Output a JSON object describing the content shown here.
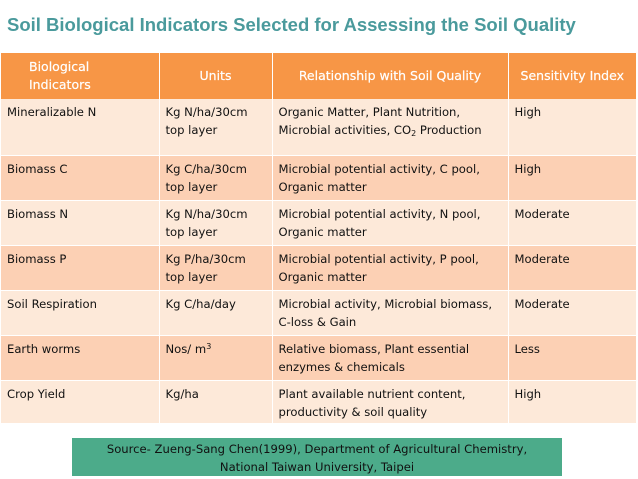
{
  "title": "Soil Biological Indicators Selected for Assessing the Soil Quality",
  "table": {
    "headers": [
      "Biological Indicators",
      "Units",
      "Relationship  with Soil Quality",
      "Sensitivity Index"
    ],
    "rows": [
      {
        "indicator": "Mineralizable N",
        "units": "Kg N/ha/30cm top layer",
        "relationship_main": "Organic Matter, Plant Nutrition, Microbial activities, CO",
        "relationship_sub": "2",
        "relationship_tail": " Production",
        "sensitivity": "High"
      },
      {
        "indicator": "Biomass C",
        "units": "Kg C/ha/30cm top layer",
        "relationship": "Microbial potential activity, C pool, Organic matter",
        "sensitivity": "High"
      },
      {
        "indicator": "Biomass N",
        "units": "Kg N/ha/30cm top layer",
        "relationship": "Microbial potential activity, N pool, Organic matter",
        "sensitivity": "Moderate"
      },
      {
        "indicator": "Biomass P",
        "units": "Kg P/ha/30cm top layer",
        "relationship": "Microbial potential activity, P pool, Organic matter",
        "sensitivity": "Moderate"
      },
      {
        "indicator": "Soil Respiration",
        "units": "Kg C/ha/day",
        "relationship": "Microbial activity, Microbial biomass, C-loss & Gain",
        "sensitivity": "Moderate"
      },
      {
        "indicator": "Earth worms",
        "units_main": "Nos/ m",
        "units_sup": "3",
        "relationship": "Relative biomass, Plant essential enzymes & chemicals",
        "sensitivity": "Less"
      },
      {
        "indicator": "Crop Yield",
        "units": "Kg/ha",
        "relationship": "Plant available nutrient content, productivity & soil quality",
        "sensitivity": "High"
      }
    ]
  },
  "source": {
    "line1": "Source- Zueng-Sang Chen(1999), Department of Agricultural Chemistry,",
    "line2": "National Taiwan University, Taipei"
  },
  "colors": {
    "title": "#4a9a9c",
    "header_bg": "#f79646",
    "row_light": "#fde9d9",
    "row_dark": "#fcd0b4",
    "source_bg": "#4cab8a"
  }
}
